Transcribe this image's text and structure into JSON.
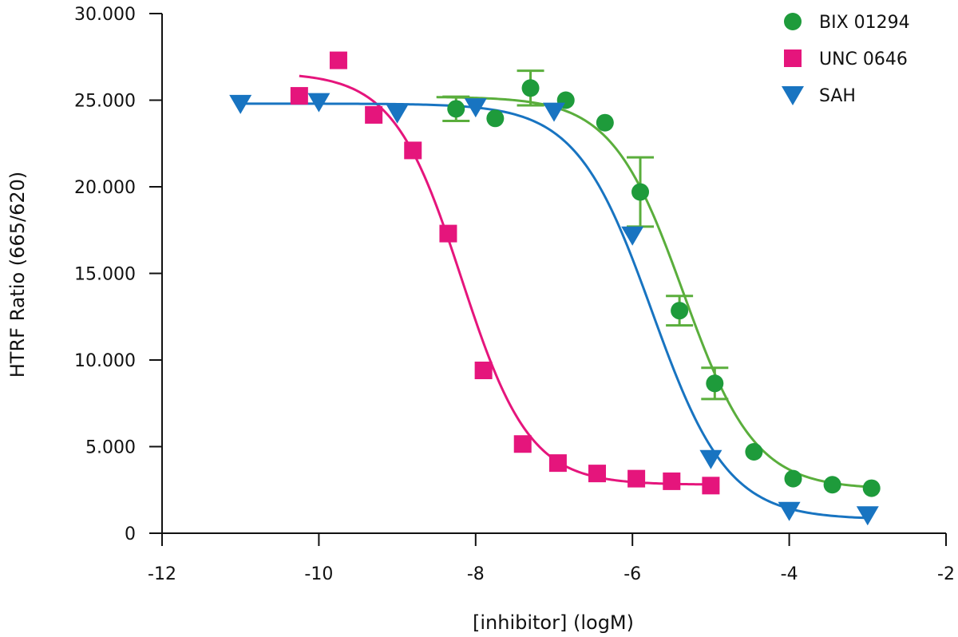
{
  "chart_data": {
    "type": "scatter",
    "title": "",
    "xlabel": "[inhibitor] (logM)",
    "ylabel": "HTRF Ratio (665/620)",
    "xlim": [
      -12,
      -2
    ],
    "ylim": [
      0,
      30000
    ],
    "x_ticks": [
      -12,
      -10,
      -8,
      -6,
      -4,
      -2
    ],
    "x_tick_labels": [
      "-12",
      "-10",
      "-8",
      "-6",
      "-4",
      "-2"
    ],
    "y_ticks": [
      0,
      5000,
      10000,
      15000,
      20000,
      25000,
      30000
    ],
    "y_tick_labels": [
      "0",
      "5.000",
      "10.000",
      "15.000",
      "20.000",
      "25.000",
      "30.000"
    ],
    "grid": false,
    "legend_position": "top-right",
    "series": [
      {
        "name": "BIX 01294",
        "marker": "circle",
        "color": "#1e9b3b",
        "line_color": "#5aae3c",
        "points": [
          {
            "x": -7.75,
            "y": 23950
          },
          {
            "x": -7.3,
            "y": 25700,
            "err": 1000
          },
          {
            "x": -6.85,
            "y": 25000
          },
          {
            "x": -6.35,
            "y": 23700
          },
          {
            "x": -5.9,
            "y": 19700,
            "err": 2000
          },
          {
            "x": -5.4,
            "y": 12850,
            "err": 850
          },
          {
            "x": -4.95,
            "y": 8650,
            "err": 900
          },
          {
            "x": -4.45,
            "y": 4700
          },
          {
            "x": -3.95,
            "y": 3150
          },
          {
            "x": -3.45,
            "y": 2800
          },
          {
            "x": -2.95,
            "y": 2600
          },
          {
            "x": -8.25,
            "y": 24500,
            "err": 700
          }
        ],
        "fit": {
          "top": 25200,
          "bottom": 2550,
          "logIC50": -5.35,
          "hill": 0.95,
          "x_range": [
            -8.5,
            -2.95
          ]
        }
      },
      {
        "name": "UNC 0646",
        "marker": "square",
        "color": "#e5157c",
        "line_color": "#e5157c",
        "points": [
          {
            "x": -10.25,
            "y": 25250
          },
          {
            "x": -9.75,
            "y": 27300
          },
          {
            "x": -9.3,
            "y": 24150
          },
          {
            "x": -8.8,
            "y": 22100
          },
          {
            "x": -8.35,
            "y": 17300
          },
          {
            "x": -7.9,
            "y": 9400
          },
          {
            "x": -7.4,
            "y": 5150
          },
          {
            "x": -6.95,
            "y": 4050
          },
          {
            "x": -6.45,
            "y": 3450
          },
          {
            "x": -5.95,
            "y": 3150
          },
          {
            "x": -5.5,
            "y": 3000
          },
          {
            "x": -5.0,
            "y": 2750
          }
        ],
        "fit": {
          "top": 26600,
          "bottom": 2800,
          "logIC50": -8.18,
          "hill": 1.0,
          "x_range": [
            -10.25,
            -5.0
          ]
        }
      },
      {
        "name": "SAH",
        "marker": "triangle-down",
        "color": "#1874c1",
        "line_color": "#1874c1",
        "points": [
          {
            "x": -11.0,
            "y": 24800
          },
          {
            "x": -10.0,
            "y": 24900
          },
          {
            "x": -9.0,
            "y": 24250
          },
          {
            "x": -8.0,
            "y": 24600
          },
          {
            "x": -7.0,
            "y": 24350
          },
          {
            "x": -6.0,
            "y": 17200
          },
          {
            "x": -5.0,
            "y": 4300
          },
          {
            "x": -4.0,
            "y": 1300
          },
          {
            "x": -3.0,
            "y": 1050
          }
        ],
        "fit": {
          "top": 24800,
          "bottom": 800,
          "logIC50": -5.75,
          "hill": 0.9,
          "x_range": [
            -11.0,
            -3.0
          ]
        }
      }
    ]
  }
}
